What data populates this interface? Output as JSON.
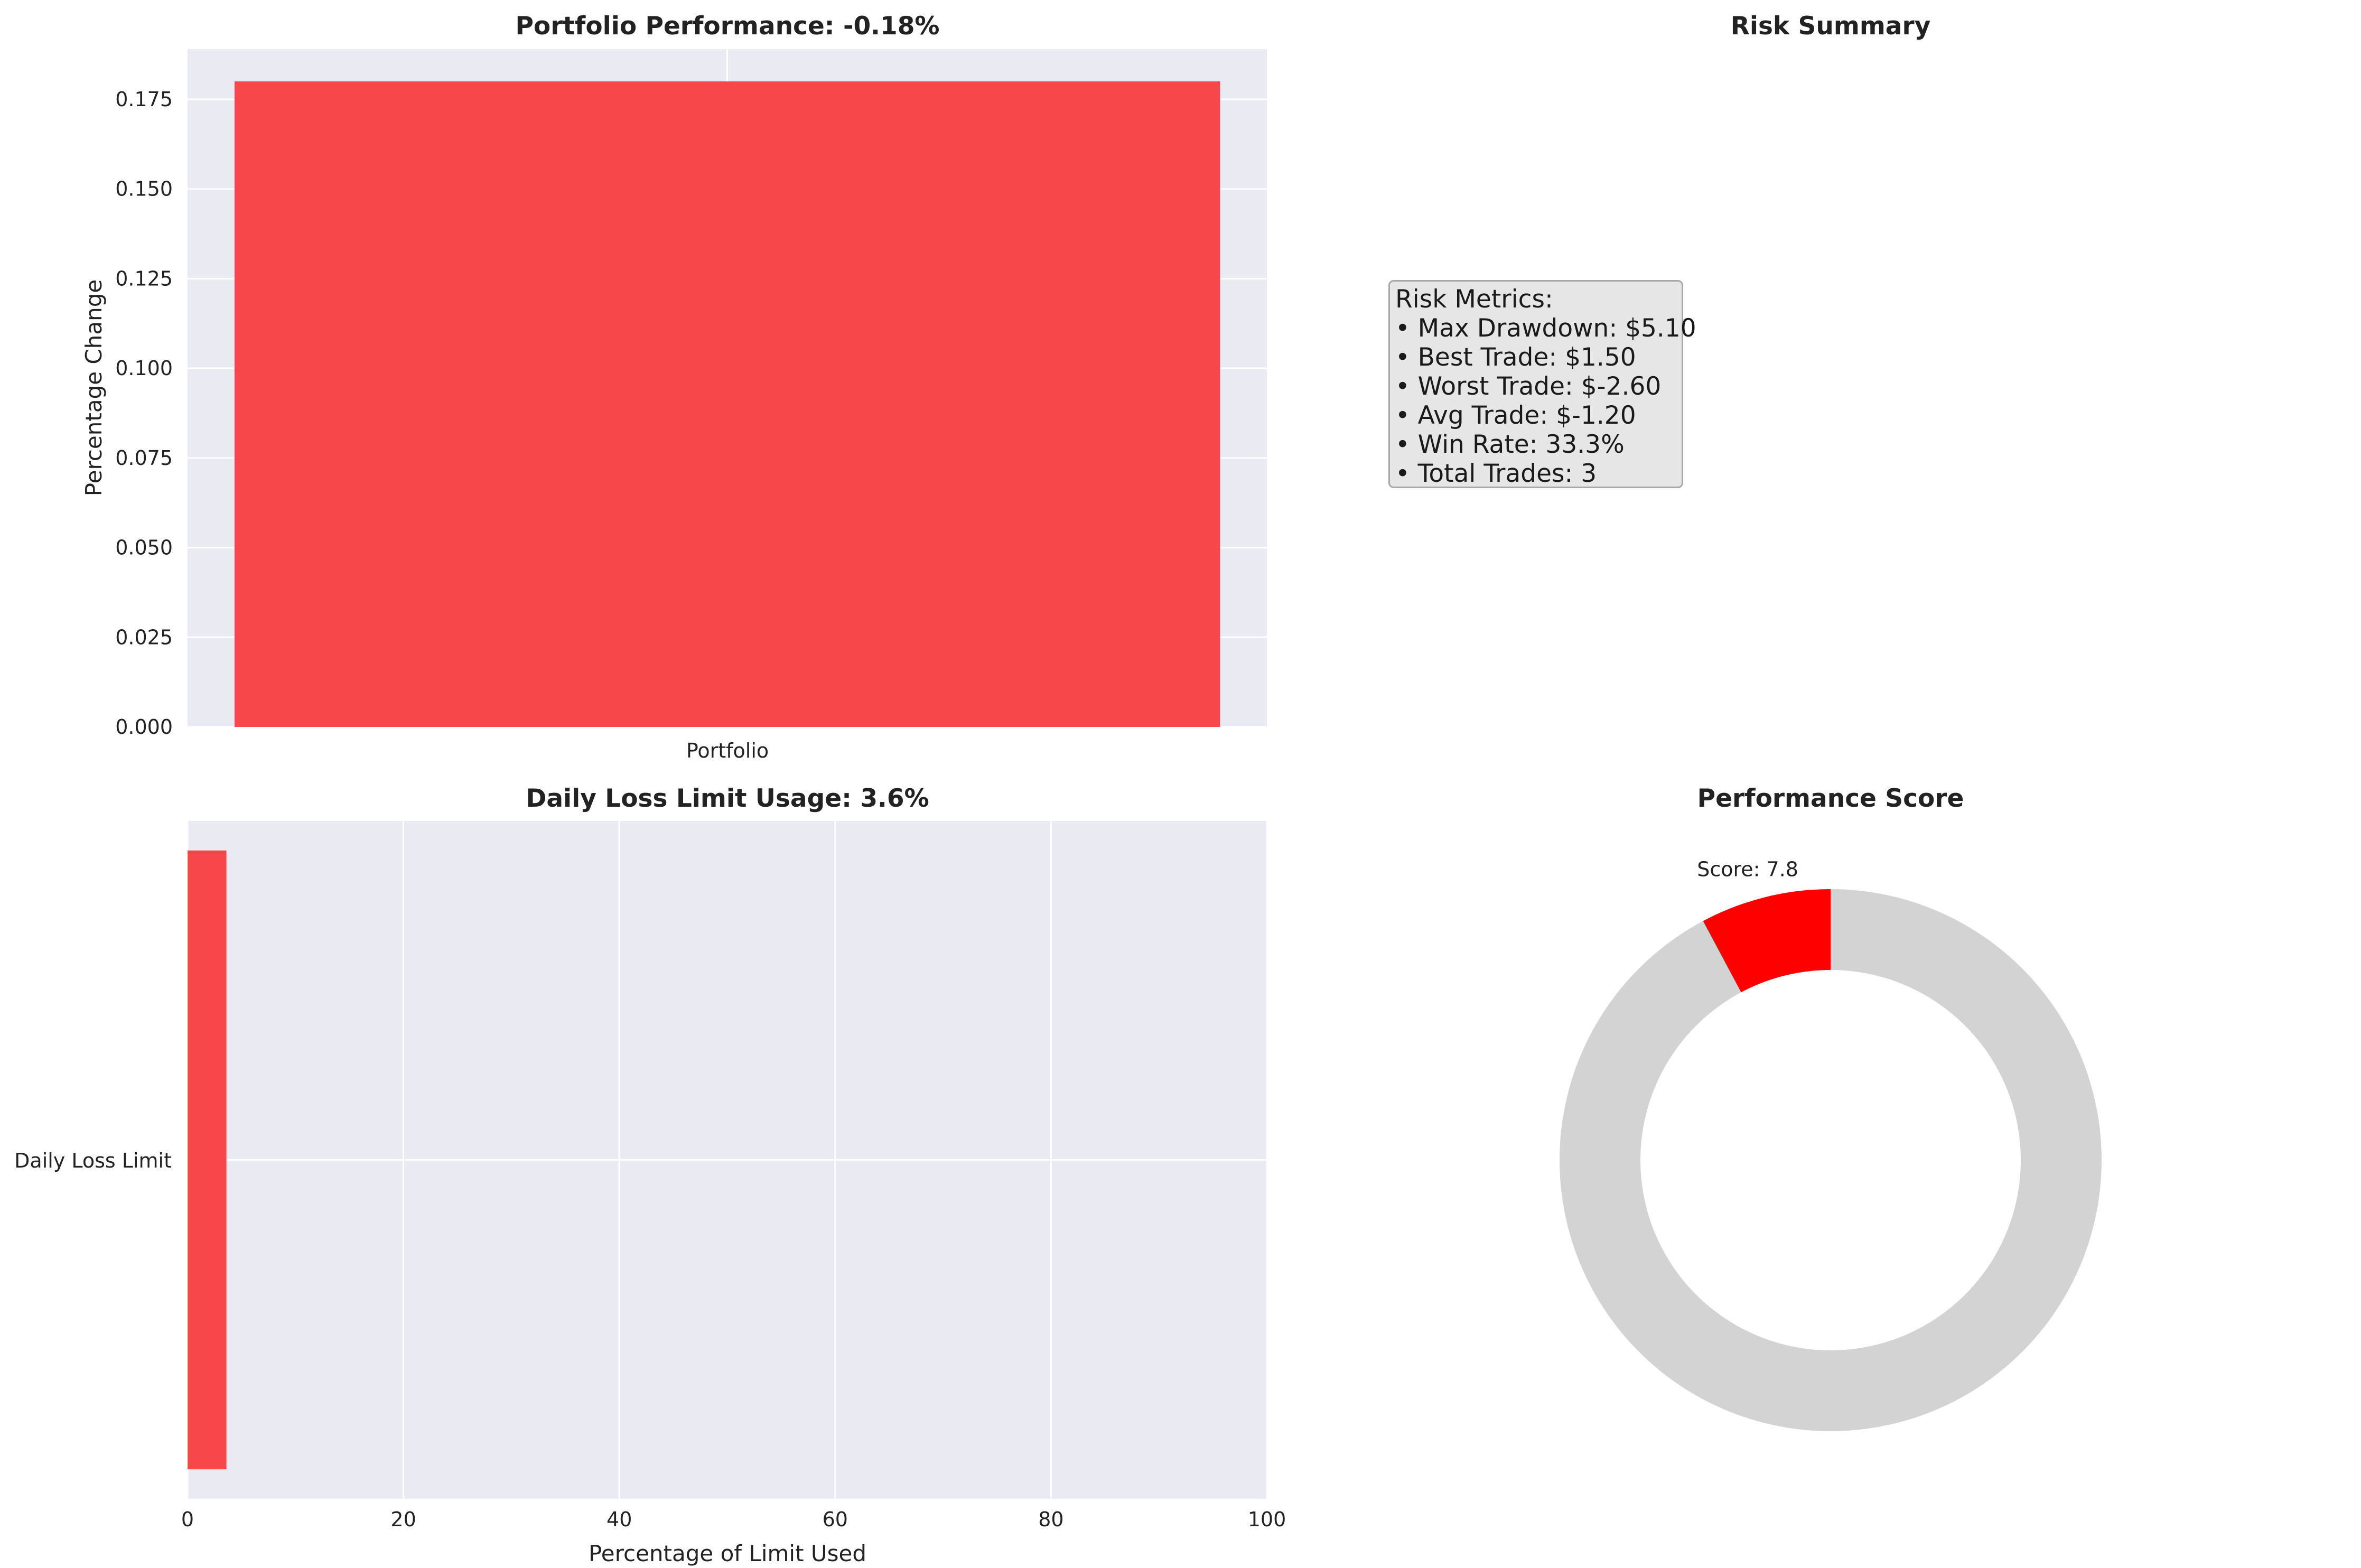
{
  "chart_data": [
    {
      "type": "bar",
      "title": "Portfolio Performance: -0.18%",
      "categories": [
        "Portfolio"
      ],
      "values": [
        0.18
      ],
      "xlabel": "",
      "ylabel": "Percentage Change",
      "ylim": [
        0,
        0.189
      ],
      "yticks": [
        "0.000",
        "0.025",
        "0.050",
        "0.075",
        "0.100",
        "0.125",
        "0.150",
        "0.175"
      ],
      "color": "#f8474a",
      "grid": true
    },
    {
      "type": "table",
      "title": "Risk Summary",
      "heading": "Risk Metrics:",
      "lines": [
        "• Max Drawdown: $5.10",
        "• Best Trade: $1.50",
        "• Worst Trade: $-2.60",
        "• Avg Trade: $-1.20",
        "• Win Rate: 33.3%",
        "• Total Trades: 3"
      ]
    },
    {
      "type": "bar",
      "orientation": "horizontal",
      "title": "Daily Loss Limit Usage: 3.6%",
      "categories": [
        "Daily Loss Limit"
      ],
      "values": [
        3.6
      ],
      "xlabel": "Percentage of Limit Used",
      "ylabel": "",
      "xlim": [
        0,
        100
      ],
      "xticks": [
        "0",
        "20",
        "40",
        "60",
        "80",
        "100"
      ],
      "color": "#f8474a",
      "grid": true
    },
    {
      "type": "pie",
      "title": "Performance Score",
      "slice_label": "Score: 7.8",
      "values": [
        7.8,
        92.2
      ],
      "colors": [
        "#ff0000",
        "#d3d3d3"
      ],
      "donut": true
    }
  ]
}
